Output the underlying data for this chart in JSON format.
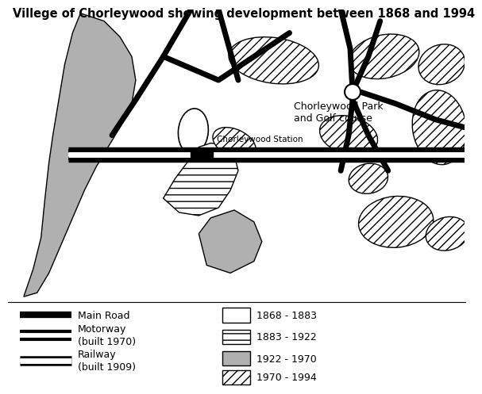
{
  "title": "Villege of Chorleywood showing development between 1868 and 1994",
  "title_fontsize": 10.5,
  "bg_color": "#ffffff",
  "gray_fc": "#b0b0b0",
  "park_label": "Chorleywood Park\nand Golf course",
  "station_label": "Chorleywood Station",
  "road_lw": 5,
  "motorway_lw": 3
}
